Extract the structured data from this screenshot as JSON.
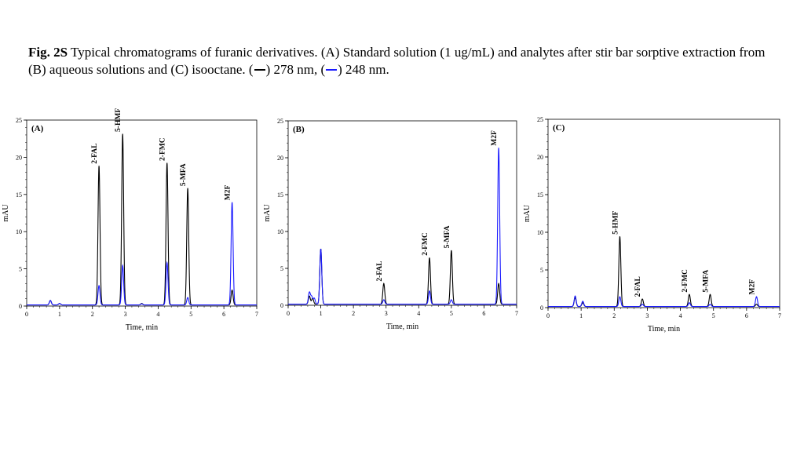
{
  "caption": {
    "bold": "Fig. 2S",
    "text_1": " Typical chromatograms of furanic derivatives. (A) Standard solution (1 ug/mL) and analytes after stir bar sorptive extraction from  (B) aqueous solutions and  (C) isooctane. (",
    "text_2": ") 278 nm, (",
    "text_3": ") 248 nm."
  },
  "colors": {
    "black_trace": "#000000",
    "blue_trace": "#1a1aff"
  },
  "chart_data": [
    {
      "type": "line",
      "panel": "(A)",
      "xlabel": "Time, min",
      "ylabel": "mAU",
      "xlim": [
        0,
        7
      ],
      "ylim": [
        0,
        25
      ],
      "xticks": [
        "0",
        "1",
        "2",
        "3",
        "4",
        "5",
        "6",
        "7"
      ],
      "yticks": [
        "0",
        "5",
        "10",
        "15",
        "20",
        "25"
      ],
      "grid": false,
      "series": [
        {
          "color": "black",
          "peaks": [
            [
              0.72,
              0.6
            ],
            [
              1.0,
              0.2
            ],
            [
              2.2,
              18.7
            ],
            [
              2.92,
              23.0
            ],
            [
              3.5,
              0.2
            ],
            [
              4.27,
              19.1
            ],
            [
              4.9,
              15.7
            ],
            [
              6.25,
              2.0
            ]
          ]
        },
        {
          "color": "blue",
          "peaks": [
            [
              0.72,
              0.6
            ],
            [
              1.0,
              0.2
            ],
            [
              2.2,
              2.6
            ],
            [
              2.92,
              5.3
            ],
            [
              3.5,
              0.15
            ],
            [
              4.27,
              5.7
            ],
            [
              4.9,
              1.0
            ],
            [
              6.25,
              13.8
            ]
          ]
        }
      ],
      "annotations": [
        {
          "text": "2-FAL",
          "x": 2.2
        },
        {
          "text": "5-HMF",
          "x": 2.92
        },
        {
          "text": "2-FMC",
          "x": 4.27
        },
        {
          "text": "5-MFA",
          "x": 4.9
        },
        {
          "text": "M2F",
          "x": 6.25
        }
      ]
    },
    {
      "type": "line",
      "panel": "(B)",
      "xlabel": "Time, min",
      "ylabel": "mAU",
      "xlim": [
        0,
        7
      ],
      "ylim": [
        0,
        25
      ],
      "xticks": [
        "0",
        "1",
        "2",
        "3",
        "4",
        "5",
        "6",
        "7"
      ],
      "yticks": [
        "0",
        "5",
        "10",
        "15",
        "20",
        "25"
      ],
      "grid": false,
      "series": [
        {
          "color": "black",
          "peaks": [
            [
              0.65,
              1.1
            ],
            [
              0.75,
              0.8
            ],
            [
              1.0,
              7.5
            ],
            [
              2.93,
              2.8
            ],
            [
              4.33,
              6.3
            ],
            [
              5.0,
              7.3
            ],
            [
              6.45,
              2.8
            ]
          ]
        },
        {
          "color": "blue",
          "peaks": [
            [
              0.65,
              1.6
            ],
            [
              0.72,
              1.0
            ],
            [
              0.8,
              0.8
            ],
            [
              1.0,
              7.5
            ],
            [
              2.93,
              0.6
            ],
            [
              4.33,
              1.8
            ],
            [
              5.0,
              0.6
            ],
            [
              6.45,
              21.2
            ]
          ]
        }
      ],
      "annotations": [
        {
          "text": "2-FAL",
          "x": 2.93
        },
        {
          "text": "2-FMC",
          "x": 4.33
        },
        {
          "text": "5-MFA",
          "x": 5.0
        },
        {
          "text": "M2F",
          "x": 6.45
        }
      ]
    },
    {
      "type": "line",
      "panel": "(C)",
      "xlabel": "Time, min",
      "ylabel": "mAU",
      "xlim": [
        0,
        7
      ],
      "ylim": [
        0,
        25
      ],
      "xticks": [
        "0",
        "1",
        "2",
        "3",
        "4",
        "5",
        "6",
        "7"
      ],
      "yticks": [
        "0",
        "5",
        "10",
        "15",
        "20",
        "25"
      ],
      "grid": false,
      "series": [
        {
          "color": "black",
          "peaks": [
            [
              0.82,
              1.2
            ],
            [
              1.05,
              0.5
            ],
            [
              2.17,
              9.3
            ],
            [
              2.85,
              1.0
            ],
            [
              4.27,
              1.6
            ],
            [
              4.9,
              1.6
            ],
            [
              6.3,
              0.3
            ]
          ]
        },
        {
          "color": "blue",
          "peaks": [
            [
              0.82,
              1.4
            ],
            [
              1.05,
              0.7
            ],
            [
              2.17,
              1.3
            ],
            [
              2.85,
              0.3
            ],
            [
              4.27,
              0.5
            ],
            [
              4.9,
              0.3
            ],
            [
              6.3,
              1.3
            ]
          ]
        }
      ],
      "annotations": [
        {
          "text": "5-HMF",
          "x": 2.17
        },
        {
          "text": "2-FAL",
          "x": 2.85
        },
        {
          "text": "2-FMC",
          "x": 4.27
        },
        {
          "text": "5-MFA",
          "x": 4.9
        },
        {
          "text": "M2F",
          "x": 6.3
        }
      ]
    }
  ]
}
